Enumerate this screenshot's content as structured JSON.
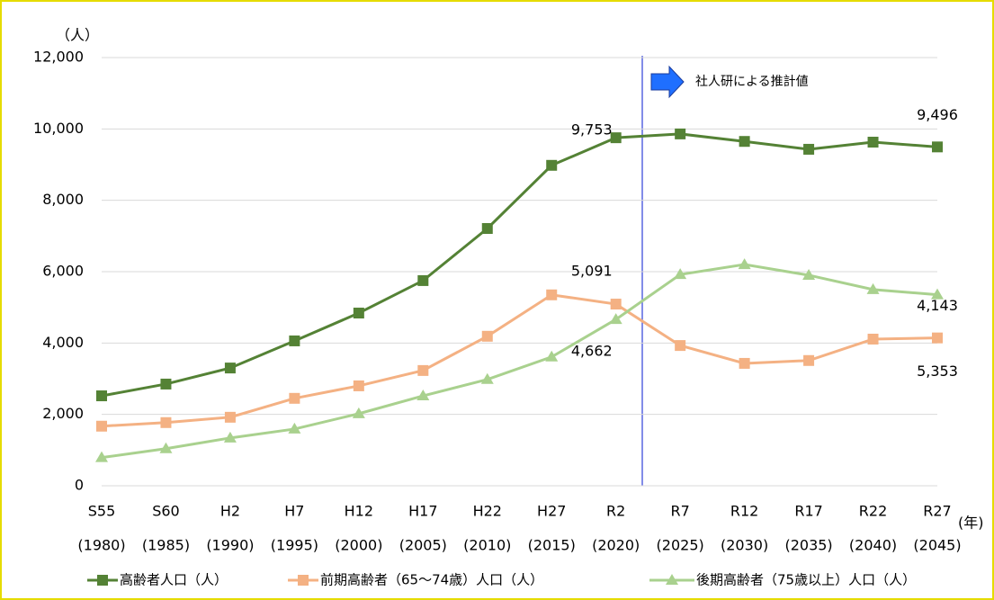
{
  "chart_data": {
    "type": "line",
    "y_unit": "（人）",
    "x_unit": "(年)",
    "annotation": "社人研による推計値",
    "categories": [
      "S55",
      "S60",
      "H2",
      "H7",
      "H12",
      "H17",
      "H22",
      "H27",
      "R2",
      "R7",
      "R12",
      "R17",
      "R22",
      "R27"
    ],
    "category_years": [
      "(1980)",
      "(1985)",
      "(1990)",
      "(1995)",
      "(2000)",
      "(2005)",
      "(2010)",
      "(2015)",
      "(2020)",
      "(2025)",
      "(2030)",
      "(2035)",
      "(2040)",
      "(2045)"
    ],
    "ylim": [
      0,
      12000
    ],
    "yticks": [
      0,
      {
        "value": 2000,
        "label": "2,000"
      },
      {
        "value": 4000,
        "label": "4,000"
      },
      {
        "value": 6000,
        "label": "6,000"
      },
      {
        "value": 8000,
        "label": "8,000"
      },
      {
        "value": 10000,
        "label": "10,000"
      },
      {
        "value": 12000,
        "label": "12,000"
      }
    ],
    "grid": true,
    "series": [
      {
        "name": "高齢者人口（人）",
        "color": "#548235",
        "marker": "square",
        "values": [
          2520,
          2850,
          3300,
          4060,
          4840,
          5750,
          7210,
          8980,
          9753,
          9860,
          9650,
          9430,
          9630,
          9496
        ],
        "value_labels": [
          null,
          null,
          null,
          null,
          null,
          null,
          null,
          null,
          "9,753",
          null,
          null,
          null,
          null,
          "9,496"
        ]
      },
      {
        "name": "前期高齢者（65～74歳）人口（人）",
        "color": "#f4b183",
        "marker": "square",
        "values": [
          1670,
          1770,
          1920,
          2450,
          2800,
          3230,
          4190,
          5350,
          5091,
          3930,
          3430,
          3510,
          4110,
          4143
        ],
        "value_labels": [
          null,
          null,
          null,
          null,
          null,
          null,
          null,
          null,
          "5,091",
          null,
          null,
          null,
          null,
          "4,143"
        ]
      },
      {
        "name": "後期高齢者（75歳以上）人口（人）",
        "color": "#a9d18e",
        "marker": "triangle",
        "values": [
          790,
          1040,
          1340,
          1590,
          2020,
          2520,
          2980,
          3610,
          4662,
          5920,
          6200,
          5900,
          5500,
          5353
        ],
        "value_labels": [
          null,
          null,
          null,
          null,
          null,
          null,
          null,
          null,
          "4,662",
          null,
          null,
          null,
          null,
          "5,353"
        ]
      }
    ]
  }
}
